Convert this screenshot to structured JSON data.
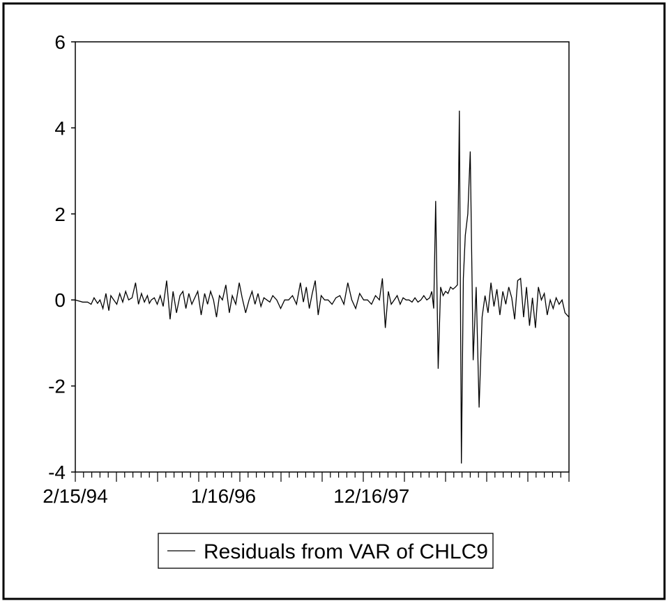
{
  "chart_data": {
    "type": "line",
    "title": "",
    "xlabel": "",
    "ylabel": "",
    "x_tick_labels": [
      "2/15/94",
      "1/16/96",
      "12/16/97"
    ],
    "x_tick_values": [
      0,
      0.3,
      0.6
    ],
    "x_range": [
      0,
      1
    ],
    "ylim": [
      -4,
      6
    ],
    "y_ticks": [
      6,
      4,
      2,
      0,
      -2,
      -4
    ],
    "grid": false,
    "legend_position": "bottom",
    "series": [
      {
        "name": "Residuals from VAR of CHLC9",
        "color": "#000000",
        "x": [
          0.0,
          0.015,
          0.025,
          0.032,
          0.038,
          0.045,
          0.05,
          0.056,
          0.062,
          0.068,
          0.072,
          0.078,
          0.084,
          0.09,
          0.096,
          0.102,
          0.108,
          0.115,
          0.122,
          0.128,
          0.134,
          0.14,
          0.146,
          0.15,
          0.154,
          0.16,
          0.166,
          0.172,
          0.178,
          0.185,
          0.192,
          0.198,
          0.205,
          0.212,
          0.218,
          0.224,
          0.23,
          0.236,
          0.242,
          0.248,
          0.255,
          0.262,
          0.268,
          0.274,
          0.28,
          0.286,
          0.292,
          0.298,
          0.305,
          0.312,
          0.318,
          0.325,
          0.332,
          0.338,
          0.345,
          0.352,
          0.358,
          0.364,
          0.37,
          0.376,
          0.382,
          0.388,
          0.394,
          0.4,
          0.408,
          0.416,
          0.424,
          0.432,
          0.44,
          0.448,
          0.456,
          0.462,
          0.468,
          0.474,
          0.48,
          0.486,
          0.492,
          0.498,
          0.505,
          0.512,
          0.52,
          0.528,
          0.536,
          0.544,
          0.552,
          0.56,
          0.568,
          0.576,
          0.584,
          0.592,
          0.6,
          0.608,
          0.616,
          0.622,
          0.628,
          0.634,
          0.64,
          0.646,
          0.652,
          0.658,
          0.664,
          0.67,
          0.676,
          0.682,
          0.688,
          0.694,
          0.7,
          0.706,
          0.712,
          0.718,
          0.722,
          0.726,
          0.73,
          0.735,
          0.74,
          0.745,
          0.75,
          0.755,
          0.76,
          0.765,
          0.77,
          0.774,
          0.778,
          0.782,
          0.786,
          0.79,
          0.795,
          0.8,
          0.806,
          0.812,
          0.818,
          0.824,
          0.83,
          0.836,
          0.842,
          0.848,
          0.854,
          0.86,
          0.866,
          0.872,
          0.878,
          0.884,
          0.89,
          0.896,
          0.902,
          0.908,
          0.914,
          0.92,
          0.926,
          0.932,
          0.938,
          0.944,
          0.95,
          0.956,
          0.962,
          0.968,
          0.974,
          0.98,
          0.986,
          0.992,
          1.0
        ],
        "values": [
          0.0,
          -0.05,
          -0.05,
          -0.1,
          0.05,
          -0.08,
          0.0,
          -0.2,
          0.15,
          -0.25,
          0.1,
          0.0,
          -0.1,
          0.15,
          -0.05,
          0.2,
          0.0,
          0.05,
          0.4,
          -0.1,
          0.15,
          -0.05,
          0.1,
          -0.08,
          0.0,
          0.05,
          -0.1,
          0.1,
          -0.15,
          0.45,
          -0.45,
          0.2,
          -0.3,
          0.1,
          0.2,
          -0.2,
          0.15,
          -0.1,
          0.05,
          0.2,
          -0.35,
          0.15,
          -0.1,
          0.2,
          0.0,
          -0.4,
          0.1,
          0.0,
          0.35,
          -0.3,
          0.1,
          -0.1,
          0.4,
          0.05,
          -0.3,
          0.0,
          0.2,
          -0.1,
          0.15,
          -0.15,
          0.05,
          0.0,
          -0.05,
          0.1,
          0.0,
          -0.2,
          0.0,
          0.0,
          0.1,
          -0.1,
          0.4,
          -0.05,
          0.3,
          -0.2,
          0.15,
          0.45,
          -0.35,
          0.1,
          0.0,
          0.0,
          -0.1,
          0.05,
          0.1,
          -0.1,
          0.4,
          0.0,
          -0.2,
          0.15,
          0.0,
          0.0,
          -0.1,
          0.1,
          0.0,
          0.5,
          -0.65,
          0.2,
          -0.1,
          0.0,
          0.1,
          -0.1,
          0.05,
          0.0,
          0.0,
          -0.05,
          0.05,
          -0.05,
          0.0,
          0.1,
          0.0,
          0.05,
          0.2,
          -0.2,
          2.3,
          -1.6,
          0.3,
          0.1,
          0.2,
          0.15,
          0.3,
          0.25,
          0.3,
          0.35,
          4.4,
          -3.8,
          0.5,
          1.5,
          2.0,
          3.45,
          -1.4,
          0.3,
          -2.5,
          -0.4,
          0.1,
          -0.3,
          0.4,
          -0.15,
          0.25,
          -0.35,
          0.2,
          -0.1,
          0.3,
          0.05,
          -0.45,
          0.45,
          0.5,
          -0.4,
          0.3,
          -0.6,
          0.05,
          -0.65,
          0.3,
          0.0,
          0.15,
          -0.35,
          0.0,
          -0.2,
          0.05,
          -0.1,
          0.0,
          -0.3,
          -0.4
        ]
      }
    ]
  }
}
